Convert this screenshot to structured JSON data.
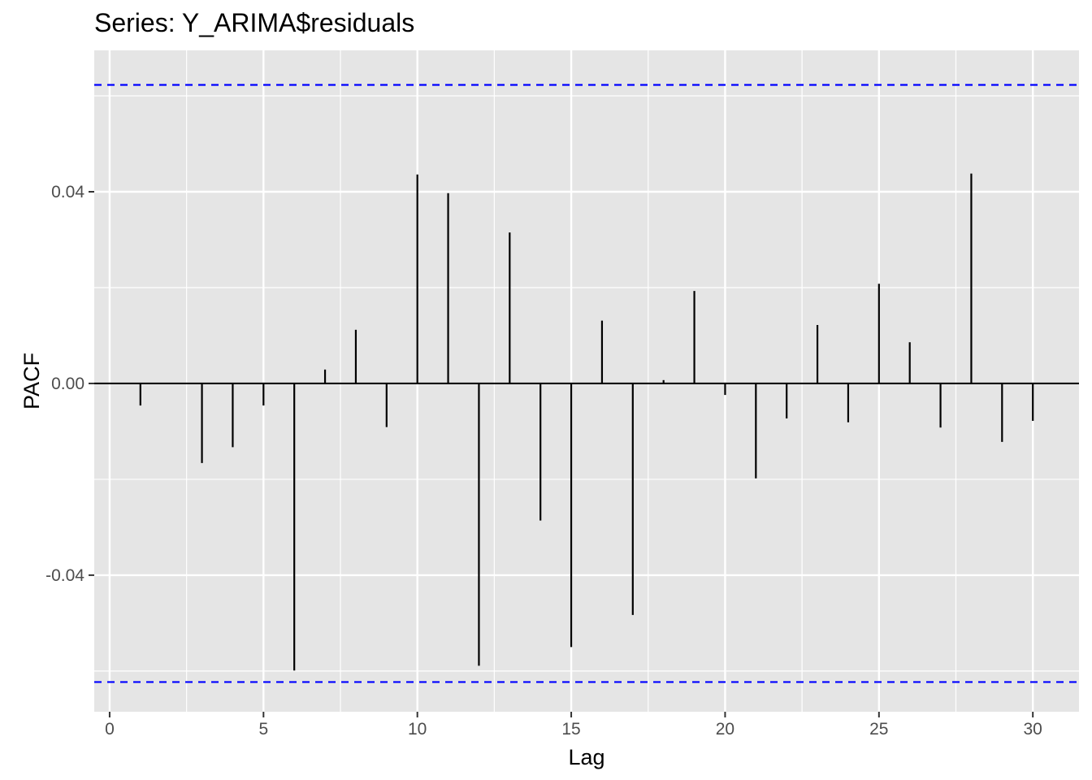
{
  "chart_data": {
    "type": "bar",
    "title": "Series: Y_ARIMA$residuals",
    "xlabel": "Lag",
    "ylabel": "PACF",
    "xlim": [
      -0.5,
      31.5
    ],
    "ylim": [
      -0.0685,
      0.0695
    ],
    "xticks": [
      0,
      5,
      10,
      15,
      20,
      25,
      30
    ],
    "xtick_labels": [
      "0",
      "5",
      "10",
      "15",
      "20",
      "25",
      "30"
    ],
    "yticks": [
      -0.04,
      0.0,
      0.04
    ],
    "ytick_labels": [
      "-0.04",
      "0.00",
      "0.04"
    ],
    "grid": true,
    "confidence_bound": 0.0623,
    "colors": {
      "panel_bg": "#e5e5e5",
      "grid": "#ffffff",
      "bars": "#000000",
      "bound_line": "#0000ff",
      "tick": "#333333"
    },
    "series": [
      {
        "lags": [
          1,
          2,
          3,
          4,
          5,
          6,
          7,
          8,
          9,
          10,
          11,
          12,
          13,
          14,
          15,
          16,
          17,
          18,
          19,
          20,
          21,
          22,
          23,
          24,
          25,
          26,
          27,
          28,
          29,
          30
        ],
        "values": [
          -0.0046,
          -0.0001,
          -0.0166,
          -0.0133,
          -0.0046,
          -0.0599,
          0.0029,
          0.0112,
          -0.0091,
          0.0436,
          0.0397,
          -0.0589,
          0.0315,
          -0.0286,
          -0.055,
          0.0131,
          -0.0483,
          0.0007,
          0.0193,
          -0.0024,
          -0.0198,
          -0.0073,
          0.0122,
          -0.0081,
          0.0208,
          0.0086,
          -0.0092,
          0.0438,
          -0.0122,
          -0.0078
        ]
      }
    ]
  }
}
